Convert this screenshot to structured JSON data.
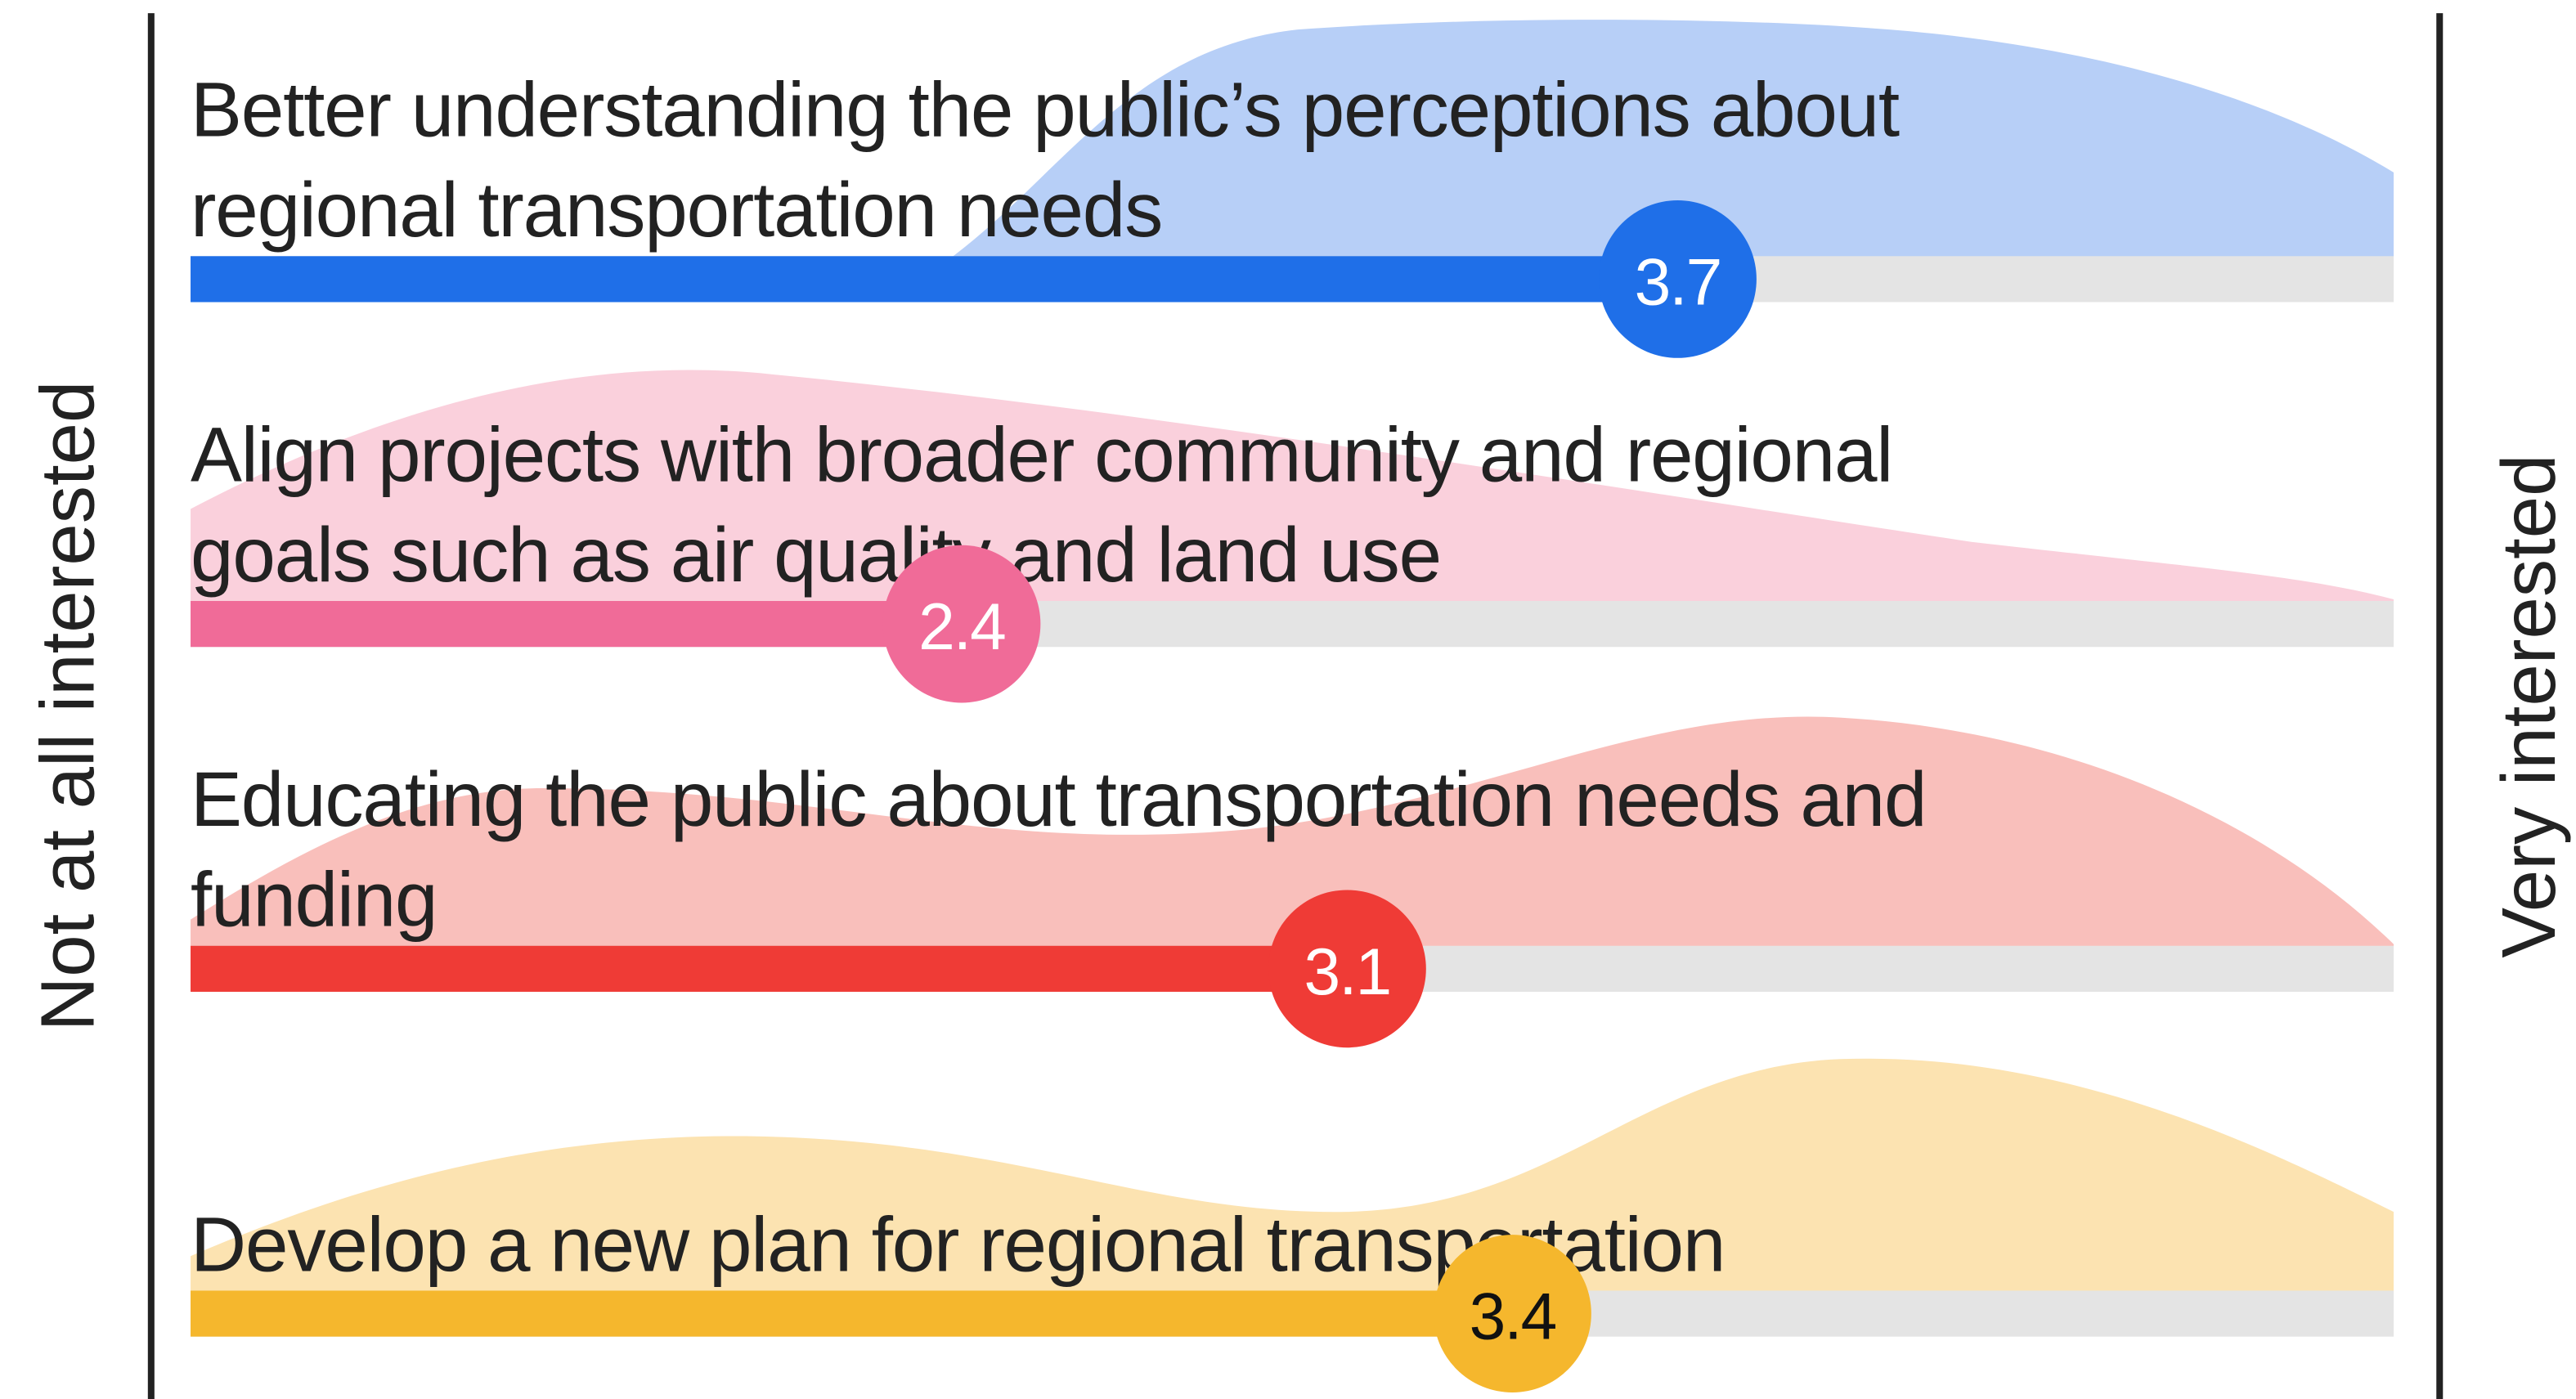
{
  "scale": {
    "min_label": "Not at all interested",
    "max_label": "Very interested",
    "range": [
      1,
      5
    ]
  },
  "items": [
    {
      "lines": [
        "Better understanding the public’s perceptions about",
        "regional transportation needs"
      ],
      "value": 3.7,
      "color": "#1f6fe8",
      "value_text_color": "#ffffff"
    },
    {
      "lines": [
        "Align projects with broader community and regional",
        "goals such as air quality and land use"
      ],
      "value": 2.4,
      "color": "#f06b98",
      "value_text_color": "#ffffff"
    },
    {
      "lines": [
        "Educating the public about transportation needs and",
        "funding"
      ],
      "value": 3.1,
      "color": "#ef3b36",
      "value_text_color": "#ffffff"
    },
    {
      "lines": [
        "Develop a new plan for regional transportation"
      ],
      "value": 3.4,
      "color": "#f5b72d",
      "value_text_color": "#111111"
    }
  ]
}
